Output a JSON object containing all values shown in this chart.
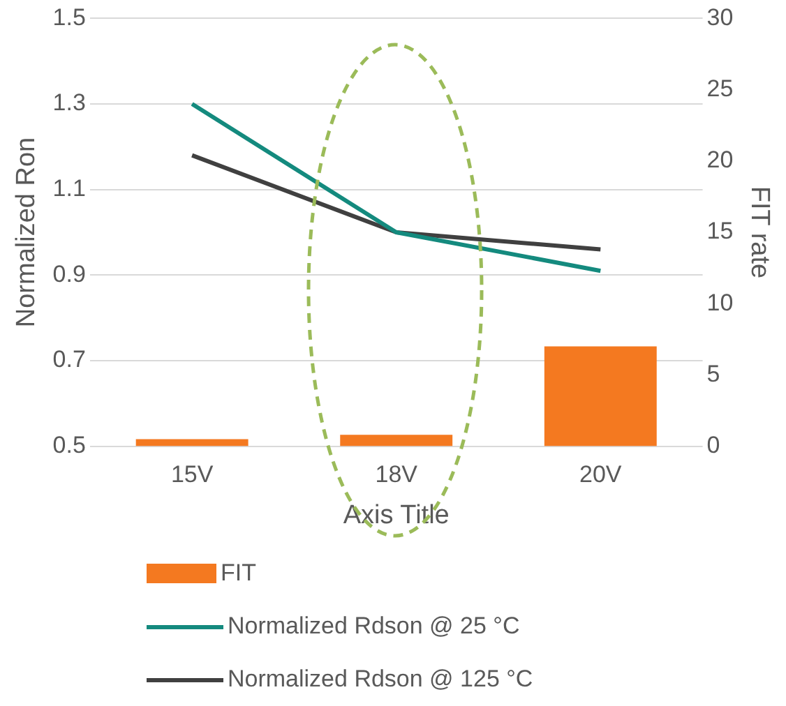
{
  "chart_data": {
    "type": "bar",
    "xlabel": "Axis Title",
    "ylabel": "Normalized Ron",
    "y2label": "FIT rate",
    "categories": [
      "15V",
      "18V",
      "20V"
    ],
    "series": [
      {
        "name": "FIT",
        "axis": "y2",
        "color": "#f47920",
        "values": [
          0.5,
          0.8,
          7
        ]
      },
      {
        "name": "Normalized Rdson @ 25 °C",
        "type": "line",
        "color": "#148a7e",
        "values": [
          1.3,
          1.0,
          0.91
        ]
      },
      {
        "name": "Normalized Rdson @ 125 °C",
        "type": "line",
        "color": "#404040",
        "values": [
          1.18,
          1.0,
          0.96
        ]
      }
    ],
    "ylim": [
      0.5,
      1.5
    ],
    "yticks": [
      0.5,
      0.7,
      0.9,
      1.1,
      1.3,
      1.5
    ],
    "y2lim": [
      0,
      30
    ],
    "y2ticks": [
      0,
      5,
      10,
      15,
      20,
      25,
      30
    ],
    "grid": "y",
    "legend": "bottom",
    "marker": "none",
    "line_style": "solid"
  }
}
